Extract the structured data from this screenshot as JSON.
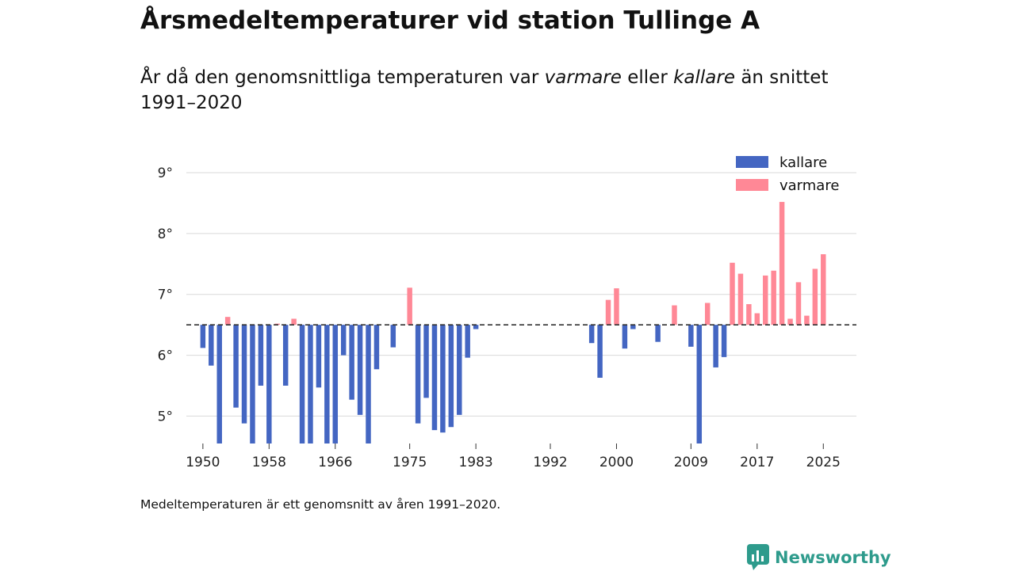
{
  "title": "Årsmedeltemperaturer vid station Tullinge A",
  "subtitle": {
    "part1": "År då den genomsnittliga temperaturen var ",
    "warm_word": "varmare",
    "part2": " eller ",
    "cold_word": "kallare",
    "part3": " än snittet 1991–2020"
  },
  "footnote": "Medeltemperaturen är ett genomsnitt av åren 1991–2020.",
  "brand": "Newsworthy",
  "colors": {
    "cold": "#4466c2",
    "warm": "#ff8896",
    "grid": "#d9d9d9",
    "ref_line": "#333333",
    "brand": "#2e9b8c"
  },
  "chart_data": {
    "type": "bar",
    "title": "Årsmedeltemperaturer vid station Tullinge A",
    "xlabel": "",
    "ylabel": "",
    "reference_line": 6.5,
    "baseline_period": "1991–2020",
    "ylim": [
      4.55,
      9.3
    ],
    "xlim": [
      1948,
      2029
    ],
    "y_ticks": [
      5,
      6,
      7,
      8,
      9
    ],
    "y_tick_labels": [
      "5°",
      "6°",
      "7°",
      "8°",
      "9°"
    ],
    "x_ticks": [
      1950,
      1958,
      1966,
      1975,
      1983,
      1992,
      2000,
      2009,
      2017,
      2025
    ],
    "x_tick_labels": [
      "1950",
      "1958",
      "1966",
      "1975",
      "1983",
      "1992",
      "2000",
      "2009",
      "2017",
      "2025"
    ],
    "legend": [
      {
        "name": "kallare",
        "color": "#4466c2"
      },
      {
        "name": "varmare",
        "color": "#ff8896"
      }
    ],
    "legend_position": "top-right",
    "grid": true,
    "years": [
      1950,
      1951,
      1952,
      1953,
      1954,
      1955,
      1956,
      1957,
      1958,
      1959,
      1960,
      1961,
      1962,
      1963,
      1964,
      1965,
      1966,
      1967,
      1968,
      1969,
      1970,
      1971,
      1973,
      1975,
      1976,
      1977,
      1978,
      1979,
      1980,
      1981,
      1982,
      1983,
      1997,
      1998,
      1999,
      2000,
      2001,
      2002,
      2005,
      2007,
      2009,
      2010,
      2011,
      2012,
      2013,
      2014,
      2015,
      2016,
      2017,
      2018,
      2019,
      2020,
      2021,
      2022,
      2023,
      2024,
      2025
    ],
    "values": [
      6.12,
      5.83,
      4.5,
      6.63,
      5.14,
      4.88,
      4.5,
      5.5,
      4.55,
      6.5,
      5.5,
      6.6,
      4.5,
      4.5,
      5.47,
      4.5,
      4.5,
      6.0,
      5.27,
      5.02,
      4.5,
      5.77,
      6.13,
      7.11,
      4.88,
      5.3,
      4.77,
      4.73,
      4.82,
      5.02,
      5.96,
      6.43,
      6.2,
      5.63,
      6.91,
      7.1,
      6.11,
      6.43,
      6.22,
      6.82,
      6.14,
      4.5,
      6.86,
      5.8,
      5.97,
      7.52,
      7.34,
      6.84,
      6.69,
      7.31,
      7.39,
      8.52,
      6.6,
      7.2,
      6.65,
      7.42,
      7.66
    ]
  }
}
